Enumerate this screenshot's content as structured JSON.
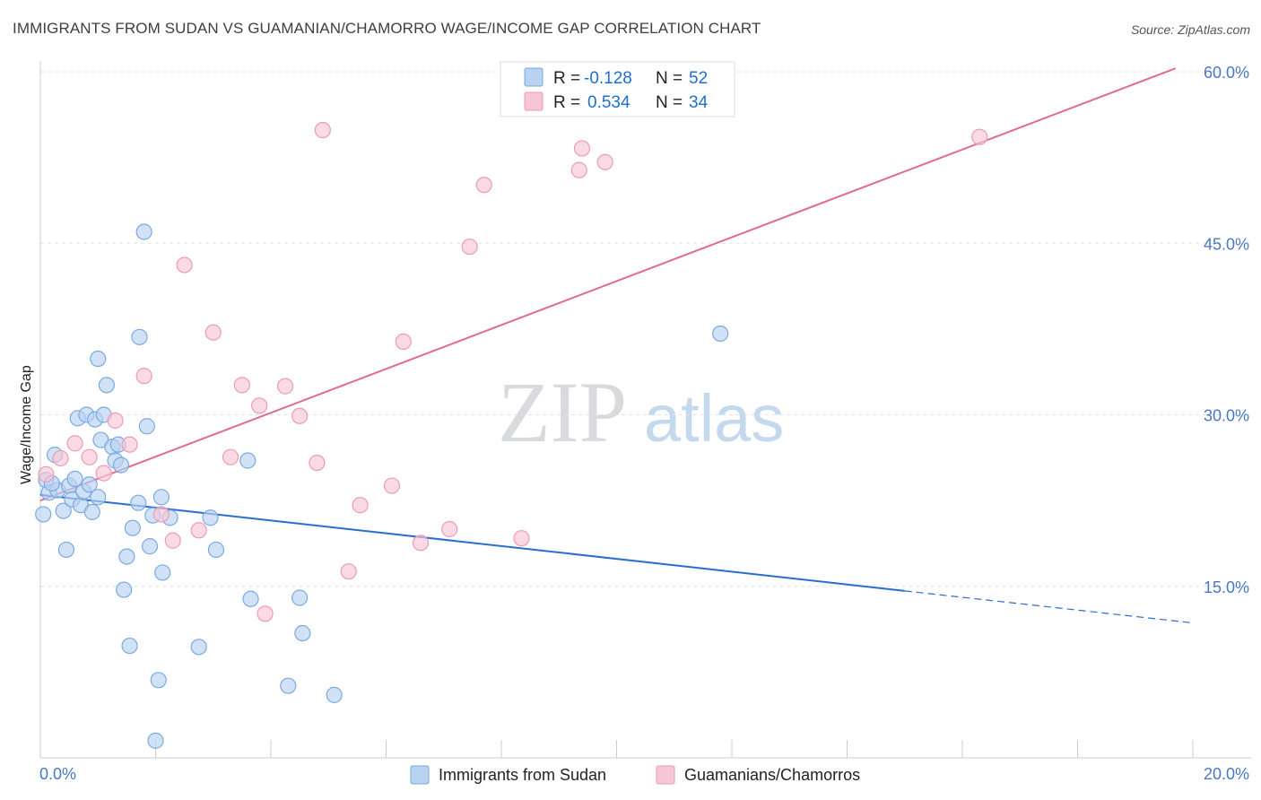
{
  "title": "IMMIGRANTS FROM SUDAN VS GUAMANIAN/CHAMORRO WAGE/INCOME GAP CORRELATION CHART",
  "source": "Source: ZipAtlas.com",
  "watermark": {
    "zip": "ZIP",
    "atlas": "atlas"
  },
  "colors": {
    "blue_fill": "#b8d3f2",
    "blue_stroke": "#7aaae0",
    "blue_line": "#2a6dd0",
    "pink_fill": "#f7c6d6",
    "pink_stroke": "#ee9ab5",
    "pink_line": "#e06a94",
    "tick_text": "#4a78c2",
    "grid": "#dde2ea"
  },
  "legend": {
    "rows": [
      {
        "r_label": "R =",
        "r_value": "-0.128",
        "n_label": "N =",
        "n_value": "52"
      },
      {
        "r_label": "R =",
        "r_value": "0.534",
        "n_label": "N =",
        "n_value": "34"
      }
    ]
  },
  "chart_data": {
    "type": "scatter",
    "xlabel": "",
    "ylabel": "Wage/Income Gap",
    "xlim": [
      0,
      20
    ],
    "ylim": [
      0,
      60
    ],
    "x_tick_labels": [
      "0.0%",
      "20.0%"
    ],
    "y_tick_labels": [
      "15.0%",
      "30.0%",
      "45.0%",
      "60.0%"
    ],
    "y_ticks": [
      15,
      30,
      45,
      60
    ],
    "grid": true,
    "series": [
      {
        "name": "Immigrants from Sudan",
        "color": "blue",
        "points": [
          [
            0.05,
            21.3
          ],
          [
            0.1,
            24.3
          ],
          [
            0.15,
            23.2
          ],
          [
            0.25,
            26.5
          ],
          [
            0.3,
            23.4
          ],
          [
            0.4,
            21.6
          ],
          [
            0.45,
            18.2
          ],
          [
            0.5,
            23.8
          ],
          [
            0.55,
            22.6
          ],
          [
            0.6,
            24.4
          ],
          [
            0.65,
            29.7
          ],
          [
            0.7,
            22.1
          ],
          [
            0.75,
            23.3
          ],
          [
            0.8,
            30.0
          ],
          [
            0.85,
            23.9
          ],
          [
            0.9,
            21.5
          ],
          [
            0.95,
            29.6
          ],
          [
            1.0,
            34.9
          ],
          [
            1.05,
            27.8
          ],
          [
            1.1,
            30.0
          ],
          [
            1.15,
            32.6
          ],
          [
            1.25,
            27.2
          ],
          [
            1.3,
            26.0
          ],
          [
            1.35,
            27.4
          ],
          [
            1.4,
            25.6
          ],
          [
            1.45,
            14.7
          ],
          [
            1.5,
            17.6
          ],
          [
            1.55,
            9.8
          ],
          [
            1.6,
            20.1
          ],
          [
            1.7,
            22.3
          ],
          [
            1.72,
            36.8
          ],
          [
            1.8,
            46.0
          ],
          [
            1.85,
            29.0
          ],
          [
            1.9,
            18.5
          ],
          [
            1.95,
            21.2
          ],
          [
            2.0,
            1.5
          ],
          [
            2.05,
            6.8
          ],
          [
            2.1,
            22.8
          ],
          [
            2.12,
            16.2
          ],
          [
            2.25,
            21.0
          ],
          [
            2.75,
            9.7
          ],
          [
            2.95,
            21.0
          ],
          [
            3.05,
            18.2
          ],
          [
            3.6,
            26.0
          ],
          [
            3.65,
            13.9
          ],
          [
            4.3,
            6.3
          ],
          [
            4.5,
            14.0
          ],
          [
            4.55,
            10.9
          ],
          [
            5.1,
            5.5
          ],
          [
            11.8,
            37.1
          ],
          [
            0.2,
            24.0
          ],
          [
            1.0,
            22.8
          ]
        ]
      },
      {
        "name": "Guamanians/Chamorros",
        "color": "pink",
        "points": [
          [
            0.1,
            24.8
          ],
          [
            0.35,
            26.2
          ],
          [
            0.6,
            27.5
          ],
          [
            0.85,
            26.3
          ],
          [
            1.1,
            24.9
          ],
          [
            1.3,
            29.5
          ],
          [
            1.55,
            27.4
          ],
          [
            1.8,
            33.4
          ],
          [
            2.1,
            21.3
          ],
          [
            2.3,
            19.0
          ],
          [
            2.5,
            43.1
          ],
          [
            2.75,
            19.9
          ],
          [
            3.0,
            37.2
          ],
          [
            3.3,
            26.3
          ],
          [
            3.5,
            32.6
          ],
          [
            3.8,
            30.8
          ],
          [
            3.9,
            12.6
          ],
          [
            4.25,
            32.5
          ],
          [
            4.5,
            29.9
          ],
          [
            4.8,
            25.8
          ],
          [
            4.9,
            54.9
          ],
          [
            5.35,
            16.3
          ],
          [
            5.55,
            22.1
          ],
          [
            6.1,
            23.8
          ],
          [
            6.3,
            36.4
          ],
          [
            6.6,
            18.8
          ],
          [
            7.1,
            20.0
          ],
          [
            7.45,
            44.7
          ],
          [
            7.7,
            50.1
          ],
          [
            8.35,
            19.2
          ],
          [
            9.35,
            51.4
          ],
          [
            9.4,
            53.3
          ],
          [
            9.8,
            52.1
          ],
          [
            16.3,
            54.3
          ]
        ]
      }
    ],
    "trend_lines": [
      {
        "series": "Immigrants from Sudan",
        "x1": 0,
        "y1": 23.0,
        "x2": 15.0,
        "y2": 14.6,
        "dash_to_x": 20.0,
        "dash_to_y": 11.8
      },
      {
        "series": "Guamanians/Chamorros",
        "x1": 0,
        "y1": 22.5,
        "x2": 19.7,
        "y2": 60.3
      }
    ]
  }
}
